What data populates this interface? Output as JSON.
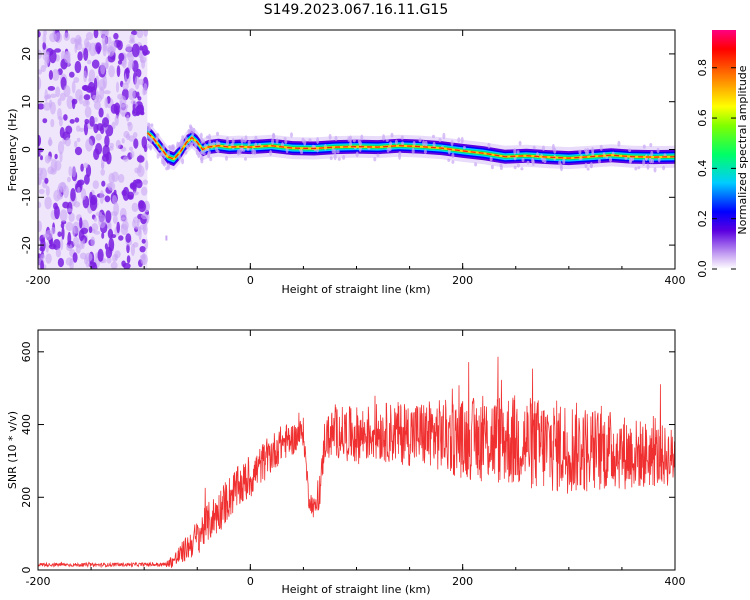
{
  "title": "S149.2023.067.16.11.G15",
  "colors": {
    "snr_line": "#f03030",
    "noise_dots": "#7a1fe0",
    "noise_light": "#c9a6f5",
    "background": "#ffffff"
  },
  "chart_data": [
    {
      "type": "heatmap",
      "xlabel": "Height of straight line (km)",
      "ylabel": "Frequency (Hz)",
      "xlim": [
        -200,
        400
      ],
      "ylim": [
        -25,
        25
      ],
      "x_ticks": [
        -200,
        0,
        200,
        400
      ],
      "x_tick_labels": [
        "-200",
        "0",
        "200",
        "400"
      ],
      "y_ticks": [
        -20,
        -10,
        0,
        10,
        20
      ],
      "y_tick_labels": [
        "-20",
        "-10",
        "0",
        "10",
        "20"
      ],
      "noise_region_x": [
        -200,
        -97
      ],
      "signal_trace": {
        "x": [
          -97,
          -92,
          -85,
          -78,
          -72,
          -66,
          -60,
          -55,
          -50,
          -45,
          -40,
          -30,
          -20,
          -10,
          0,
          20,
          40,
          60,
          80,
          100,
          120,
          140,
          160,
          180,
          200,
          220,
          240,
          260,
          280,
          300,
          320,
          340,
          360,
          380,
          400
        ],
        "y": [
          3.5,
          2.5,
          0.5,
          -1.5,
          -2.0,
          -0.5,
          1.5,
          2.5,
          1.5,
          0.0,
          0.5,
          0.8,
          0.5,
          0.6,
          0.5,
          0.8,
          0.3,
          0.2,
          0.5,
          0.6,
          0.5,
          0.8,
          0.6,
          0.3,
          -0.3,
          -0.8,
          -1.5,
          -1.3,
          -1.6,
          -1.8,
          -1.5,
          -1.2,
          -1.5,
          -1.6,
          -1.5
        ]
      },
      "colorbar": {
        "label": "Normalized spectral amplitude",
        "range": [
          0,
          0.95
        ],
        "ticks": [
          0.0,
          0.2,
          0.4,
          0.6,
          0.8
        ],
        "tick_labels": [
          "0.0",
          "0.2",
          "0.4",
          "0.6",
          "0.8"
        ]
      },
      "grid": false
    },
    {
      "type": "line",
      "xlabel": "Height of straight line (km)",
      "ylabel": "SNR (10 * v/v)",
      "xlim": [
        -200,
        400
      ],
      "ylim": [
        0,
        660
      ],
      "x_ticks": [
        -200,
        0,
        200,
        400
      ],
      "x_tick_labels": [
        "-200",
        "0",
        "200",
        "400"
      ],
      "y_ticks": [
        0,
        200,
        400,
        600
      ],
      "y_tick_labels": [
        "0",
        "200",
        "400",
        "600"
      ],
      "series": [
        {
          "x": [
            -200,
            -150,
            -100,
            -80,
            -70,
            -60,
            -50,
            -40,
            -30,
            -20,
            -10,
            0,
            10,
            20,
            30,
            40,
            50,
            55,
            60,
            65,
            70,
            80,
            100,
            120,
            150,
            180,
            200,
            220,
            240,
            260,
            280,
            300,
            320,
            340,
            360,
            380,
            400
          ],
          "y": [
            15,
            14,
            15,
            15,
            30,
            60,
            90,
            130,
            160,
            200,
            230,
            250,
            290,
            320,
            350,
            360,
            380,
            200,
            170,
            190,
            360,
            380,
            370,
            380,
            375,
            370,
            360,
            360,
            360,
            350,
            340,
            340,
            330,
            330,
            320,
            315,
            310
          ],
          "spread": [
            5,
            5,
            5,
            6,
            25,
            35,
            50,
            55,
            60,
            60,
            60,
            55,
            55,
            55,
            50,
            45,
            40,
            30,
            30,
            30,
            60,
            70,
            80,
            80,
            90,
            100,
            110,
            120,
            130,
            130,
            130,
            130,
            120,
            110,
            100,
            90,
            80
          ]
        }
      ],
      "grid": false
    }
  ]
}
